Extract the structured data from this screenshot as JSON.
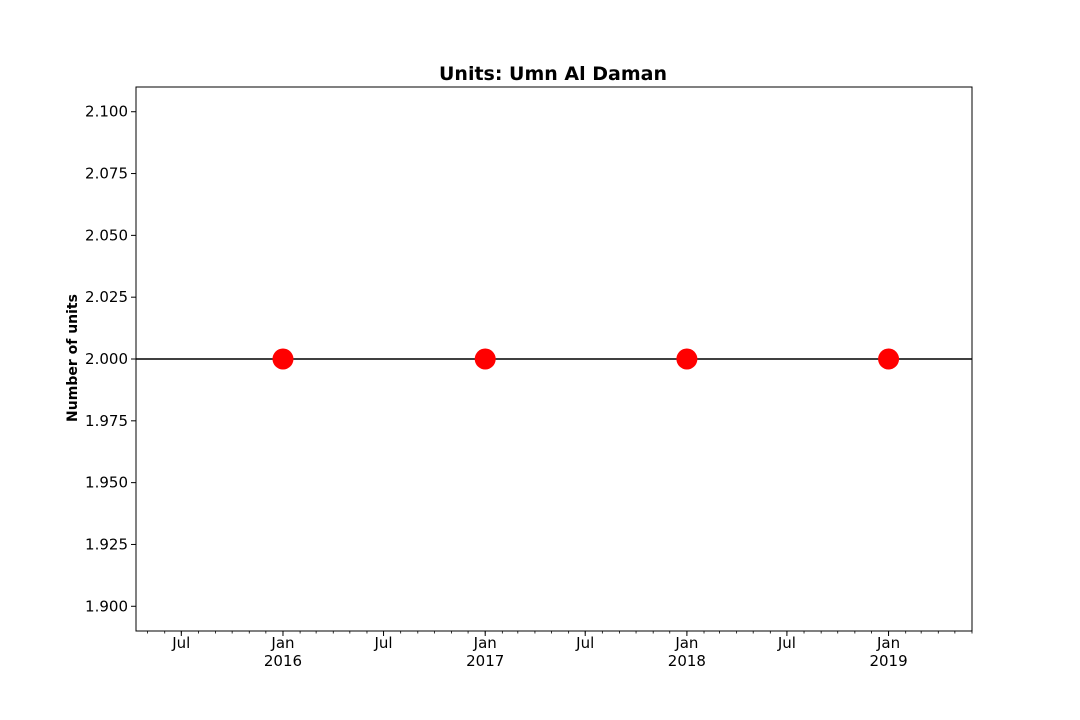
{
  "chart_data": {
    "type": "scatter",
    "title": "Units: Umn Al Daman",
    "xlabel": "",
    "ylabel": "Number of units",
    "x_range": [
      "2015-04-10",
      "2019-06-01"
    ],
    "ylim": [
      1.89,
      2.11
    ],
    "yticks": [
      1.9,
      1.925,
      1.95,
      1.975,
      2.0,
      2.025,
      2.05,
      2.075,
      2.1
    ],
    "ytick_labels": [
      "1.900",
      "1.925",
      "1.950",
      "1.975",
      "2.000",
      "2.025",
      "2.050",
      "2.075",
      "2.100"
    ],
    "xticks": [
      {
        "date": "2015-07-01",
        "label": "Jul",
        "sublabel": ""
      },
      {
        "date": "2016-01-01",
        "label": "Jan",
        "sublabel": "2016"
      },
      {
        "date": "2016-07-01",
        "label": "Jul",
        "sublabel": ""
      },
      {
        "date": "2017-01-01",
        "label": "Jan",
        "sublabel": "2017"
      },
      {
        "date": "2017-07-01",
        "label": "Jul",
        "sublabel": ""
      },
      {
        "date": "2018-01-01",
        "label": "Jan",
        "sublabel": "2018"
      },
      {
        "date": "2018-07-01",
        "label": "Jul",
        "sublabel": ""
      },
      {
        "date": "2019-01-01",
        "label": "Jan",
        "sublabel": "2019"
      }
    ],
    "hline": 2.0,
    "hline_color": "#000000",
    "series": [
      {
        "color": "#ff0000",
        "points": [
          {
            "x": "2016-01-01",
            "y": 2.0
          },
          {
            "x": "2017-01-01",
            "y": 2.0
          },
          {
            "x": "2018-01-01",
            "y": 2.0
          },
          {
            "x": "2019-01-01",
            "y": 2.0
          }
        ]
      }
    ],
    "grid": false,
    "legend": "none"
  }
}
